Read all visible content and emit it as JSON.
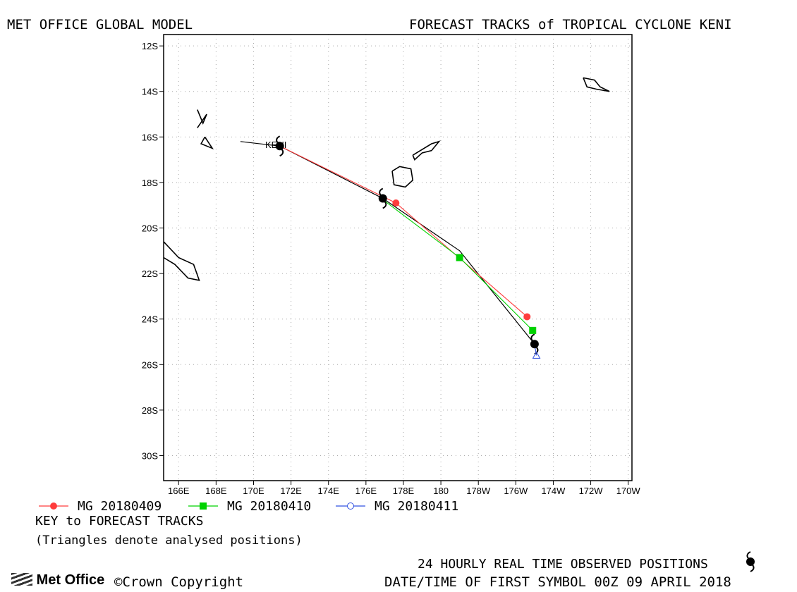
{
  "header": {
    "left_title": "MET OFFICE GLOBAL MODEL",
    "right_title": "FORECAST TRACKS of TROPICAL CYCLONE KENI"
  },
  "chart_data": {
    "type": "map",
    "storm_label": "KENI",
    "y_ticks": [
      {
        "lat": -12,
        "label": "12S"
      },
      {
        "lat": -14,
        "label": "14S"
      },
      {
        "lat": -16,
        "label": "16S"
      },
      {
        "lat": -18,
        "label": "18S"
      },
      {
        "lat": -20,
        "label": "20S"
      },
      {
        "lat": -22,
        "label": "22S"
      },
      {
        "lat": -24,
        "label": "24S"
      },
      {
        "lat": -26,
        "label": "26S"
      },
      {
        "lat": -28,
        "label": "28S"
      },
      {
        "lat": -30,
        "label": "30S"
      }
    ],
    "x_ticks": [
      {
        "lon": 166,
        "label": "166E"
      },
      {
        "lon": 168,
        "label": "168E"
      },
      {
        "lon": 170,
        "label": "170E"
      },
      {
        "lon": 172,
        "label": "172E"
      },
      {
        "lon": 174,
        "label": "174E"
      },
      {
        "lon": 176,
        "label": "176E"
      },
      {
        "lon": 178,
        "label": "178E"
      },
      {
        "lon": 180,
        "label": "180"
      },
      {
        "lon": 182,
        "label": "178W"
      },
      {
        "lon": 184,
        "label": "176W"
      },
      {
        "lon": 186,
        "label": "174W"
      },
      {
        "lon": 188,
        "label": "172W"
      },
      {
        "lon": 190,
        "label": "170W"
      }
    ],
    "lon_range": [
      165.2,
      190.2
    ],
    "lat_range": [
      -11.5,
      -31.1
    ],
    "grid": true,
    "observed_track": {
      "name": "24 HOURLY REAL TIME OBSERVED POSITIONS",
      "color": "#000000",
      "points": [
        [
          169.3,
          -16.2
        ],
        [
          171.4,
          -16.4
        ],
        [
          176.9,
          -18.7
        ],
        [
          181.0,
          -21.0
        ],
        [
          185.0,
          -25.1
        ]
      ],
      "symbols": [
        [
          171.4,
          -16.4
        ],
        [
          176.9,
          -18.7
        ],
        [
          185.0,
          -25.1
        ]
      ]
    },
    "series": [
      {
        "name": "MG 20180409",
        "color": "#ff3c3c",
        "marker": "circle",
        "points": [
          [
            171.4,
            -16.4
          ],
          [
            177.6,
            -18.9
          ],
          [
            184.6,
            -23.9
          ]
        ]
      },
      {
        "name": "MG 20180410",
        "color": "#00d200",
        "marker": "square",
        "points": [
          [
            176.9,
            -18.75
          ],
          [
            181.0,
            -21.3
          ],
          [
            184.9,
            -24.5
          ]
        ]
      },
      {
        "name": "MG 20180411",
        "color": "#3050e0",
        "marker": "open-circle",
        "points": [
          [
            185.0,
            -25.1
          ],
          [
            185.1,
            -25.6
          ]
        ]
      }
    ],
    "analysed_triangles": [
      [
        185.1,
        -25.6
      ]
    ],
    "islands": [
      [
        [
          167.0,
          -14.8
        ],
        [
          167.3,
          -15.4
        ],
        [
          167.5,
          -15.0
        ],
        [
          167.0,
          -15.6
        ]
      ],
      [
        [
          167.4,
          -16.0
        ],
        [
          167.8,
          -16.5
        ],
        [
          167.2,
          -16.3
        ],
        [
          167.4,
          -16.0
        ]
      ],
      [
        [
          165.2,
          -20.6
        ],
        [
          166.0,
          -21.3
        ],
        [
          166.8,
          -21.6
        ],
        [
          167.1,
          -22.3
        ],
        [
          166.5,
          -22.2
        ],
        [
          165.8,
          -21.6
        ],
        [
          165.2,
          -21.3
        ]
      ],
      [
        [
          177.4,
          -17.5
        ],
        [
          177.8,
          -17.3
        ],
        [
          178.4,
          -17.4
        ],
        [
          178.5,
          -17.9
        ],
        [
          178.1,
          -18.2
        ],
        [
          177.5,
          -18.1
        ],
        [
          177.4,
          -17.5
        ]
      ],
      [
        [
          178.5,
          -16.8
        ],
        [
          179.5,
          -16.3
        ],
        [
          179.9,
          -16.2
        ],
        [
          179.5,
          -16.6
        ],
        [
          179.0,
          -16.7
        ],
        [
          178.6,
          -17.0
        ],
        [
          178.5,
          -16.8
        ]
      ],
      [
        [
          187.6,
          -13.4
        ],
        [
          188.2,
          -13.5
        ],
        [
          188.5,
          -13.8
        ],
        [
          189.0,
          -14.0
        ],
        [
          188.3,
          -13.9
        ],
        [
          187.8,
          -13.8
        ],
        [
          187.6,
          -13.4
        ]
      ]
    ]
  },
  "legend": {
    "items": [
      {
        "label": "MG 20180409",
        "color": "#ff3c3c",
        "marker": "circle"
      },
      {
        "label": "MG 20180410",
        "color": "#00d200",
        "marker": "square"
      },
      {
        "label": "MG 20180411",
        "color": "#3050e0",
        "marker": "open-circle"
      }
    ],
    "key_title": "KEY to FORECAST TRACKS",
    "key_note": "(Triangles denote analysed positions)"
  },
  "footer": {
    "logo_text": "Met Office",
    "copyright": "©Crown Copyright",
    "observed_label": "24 HOURLY REAL TIME OBSERVED POSITIONS",
    "datetime_label": "DATE/TIME OF FIRST SYMBOL 00Z 09 APRIL 2018"
  }
}
